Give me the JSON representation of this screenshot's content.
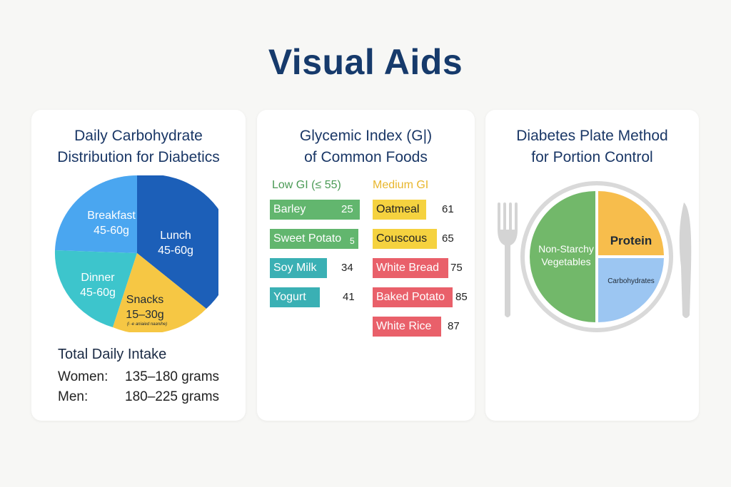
{
  "page": {
    "title": "Visual Aids"
  },
  "carb_card": {
    "title_line1": "Daily Carbohydrate",
    "title_line2": "Distribution for Diabetics",
    "segments": [
      {
        "name": "Lunch",
        "amount": "45-60g",
        "color": "#1c5fb8"
      },
      {
        "name": "Breakfast",
        "amount": "45-60g",
        "color": "#4aa6f0"
      },
      {
        "name": "Dinner",
        "amount": "45-60g",
        "color": "#3dc5cc"
      },
      {
        "name": "Snacks",
        "amount": "15–30g",
        "note": "(i -e aniaied naanihe)",
        "color": "#f6c744"
      }
    ],
    "intake": {
      "heading": "Total Daily Intake",
      "women_label": "Women:",
      "women_value": "135–180 grams",
      "men_label": "Men:",
      "men_value": "180–225 grams"
    }
  },
  "gi_card": {
    "title_line1": "Glycemic Index (G|)",
    "title_line2": "of Common Foods",
    "low_heading": "Low GI (≤ 55)",
    "medium_heading": "Medium GI",
    "low_foods": [
      {
        "name": "Barley",
        "value": "25"
      },
      {
        "name": "Sweet Potato",
        "value": "5"
      },
      {
        "name": "Soy Milk",
        "value": "34"
      },
      {
        "name": "Yogurt",
        "value": "41"
      }
    ],
    "other_foods": [
      {
        "name": "Oatmeal",
        "value": "61"
      },
      {
        "name": "Couscous",
        "value": "65"
      },
      {
        "name": "White Bread",
        "value": "75"
      },
      {
        "name": "Baked Potato",
        "value": "85"
      },
      {
        "name": "White Rice",
        "value": "87"
      }
    ],
    "colors": {
      "low": "#62b66e",
      "medium": "#f5d23f",
      "high": "#e9606a"
    }
  },
  "plate_card": {
    "title_line1": "Diabetes Plate Method",
    "title_line2": "for Portion Control",
    "veg_line1": "Non-Starchy",
    "veg_line2": "Vegetables",
    "protein": "Protein",
    "carbs": "Carbohydrates",
    "colors": {
      "vegetables": "#72b86a",
      "protein": "#f7bd4c",
      "carbs": "#9cc6f2",
      "plate_rim": "#d9d9d9",
      "utensils": "#d4d4d4"
    }
  }
}
